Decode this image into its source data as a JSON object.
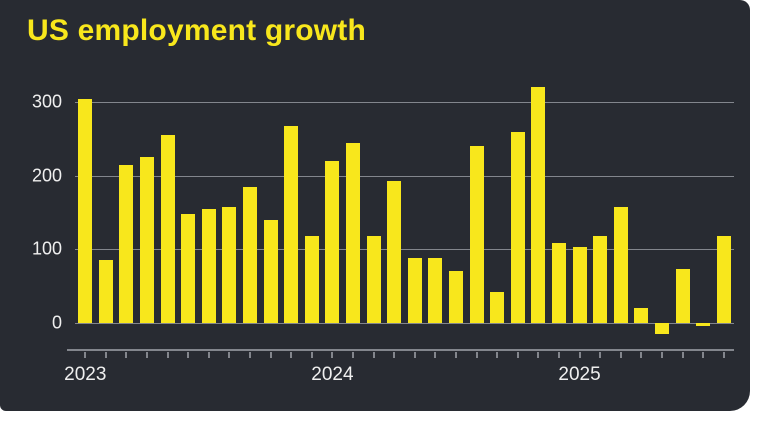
{
  "title": "US employment growth",
  "colors": {
    "background": "#282b32",
    "bar": "#f8e71c",
    "title": "#f8e71c",
    "axis_text": "#efefef",
    "gridline": "#83868d"
  },
  "chart_data": {
    "type": "bar",
    "title": "US employment growth",
    "xlabel": "",
    "ylabel": "",
    "x": [
      "Jan 2023",
      "Feb 2023",
      "Mar 2023",
      "Apr 2023",
      "May 2023",
      "Jun 2023",
      "Jul 2023",
      "Aug 2023",
      "Sep 2023",
      "Oct 2023",
      "Nov 2023",
      "Dec 2023",
      "Jan 2024",
      "Feb 2024",
      "Mar 2024",
      "Apr 2024",
      "May 2024",
      "Jun 2024",
      "Jul 2024",
      "Aug 2024",
      "Sep 2024",
      "Oct 2024",
      "Nov 2024",
      "Dec 2024",
      "Jan 2025",
      "Feb 2025",
      "Mar 2025",
      "Apr 2025",
      "May 2025",
      "Jun 2025",
      "Jul 2025",
      "Aug 2025"
    ],
    "values": [
      305,
      85,
      215,
      225,
      255,
      148,
      155,
      157,
      185,
      140,
      268,
      118,
      220,
      245,
      118,
      193,
      88,
      88,
      70,
      240,
      42,
      260,
      320,
      108,
      103,
      118,
      158,
      20,
      -15,
      73,
      -5,
      118
    ],
    "yticks": [
      0,
      100,
      200,
      300
    ],
    "ylim": [
      -37,
      322
    ],
    "year_ticks": [
      {
        "index": 0,
        "label": "2023"
      },
      {
        "index": 12,
        "label": "2024"
      },
      {
        "index": 24,
        "label": "2025"
      }
    ],
    "grid": "horizontal",
    "legend_position": "none"
  }
}
